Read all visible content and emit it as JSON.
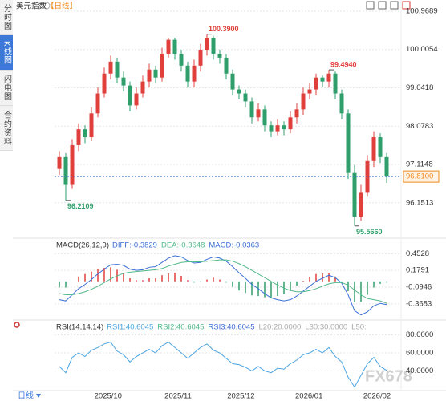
{
  "header": {
    "title": "美元指数",
    "period": "【日线】"
  },
  "sidebar": [
    "分时图",
    "K线图",
    "闪电图",
    "合约资料"
  ],
  "footer": {
    "period": "日线"
  },
  "watermark": "FX678",
  "chart_data": [
    {
      "type": "candlestick",
      "open": [
        97.0,
        97.3,
        96.6,
        97.6,
        98.0,
        97.8,
        98.4,
        98.9,
        99.4,
        99.7,
        99.3,
        99.1,
        98.6,
        98.9,
        99.2,
        99.5,
        99.3,
        99.9,
        100.25,
        99.9,
        99.6,
        99.2,
        99.6,
        100.0,
        100.3,
        99.9,
        99.8,
        99.4,
        99.0,
        98.9,
        98.7,
        98.3,
        98.5,
        98.1,
        97.95,
        98.1,
        98.0,
        98.3,
        98.5,
        98.9,
        99.0,
        99.3,
        99.2,
        99.4,
        98.9,
        98.4,
        96.9,
        95.8,
        96.4,
        97.2,
        97.8,
        97.3
      ],
      "high": [
        97.45,
        97.4,
        97.75,
        98.15,
        98.1,
        98.55,
        99.05,
        99.55,
        99.85,
        99.8,
        99.45,
        99.2,
        99.05,
        99.35,
        99.65,
        99.6,
        100.05,
        100.3,
        100.3,
        100.0,
        99.7,
        99.75,
        100.15,
        100.39,
        100.35,
        100.0,
        99.9,
        99.5,
        99.1,
        99.0,
        98.8,
        98.65,
        98.6,
        98.2,
        98.25,
        98.2,
        98.45,
        98.65,
        99.05,
        99.15,
        99.4,
        99.35,
        99.494,
        99.45,
        99.0,
        98.5,
        97.1,
        96.6,
        97.35,
        97.95,
        97.9,
        97.4
      ],
      "low": [
        96.85,
        96.2109,
        96.5,
        97.45,
        97.65,
        97.7,
        98.3,
        98.8,
        99.25,
        99.15,
        98.95,
        98.45,
        98.5,
        98.8,
        99.05,
        99.15,
        99.2,
        99.8,
        99.75,
        99.45,
        99.05,
        99.05,
        99.45,
        99.85,
        99.75,
        99.65,
        99.25,
        98.85,
        98.75,
        98.55,
        98.15,
        98.2,
        97.95,
        97.8,
        97.85,
        97.85,
        97.9,
        98.15,
        98.35,
        98.75,
        98.85,
        99.05,
        99.05,
        98.75,
        98.25,
        96.75,
        95.566,
        95.7,
        96.3,
        97.05,
        97.15,
        96.65
      ],
      "close": [
        97.3,
        96.6,
        97.6,
        98.0,
        97.8,
        98.4,
        98.9,
        99.4,
        99.7,
        99.3,
        99.1,
        98.6,
        98.9,
        99.2,
        99.5,
        99.3,
        99.9,
        100.25,
        99.9,
        99.6,
        99.2,
        99.6,
        100.0,
        100.3,
        99.9,
        99.8,
        99.4,
        99.0,
        98.9,
        98.7,
        98.3,
        98.5,
        98.1,
        97.95,
        98.1,
        98.0,
        98.3,
        98.5,
        98.9,
        99.0,
        99.3,
        99.2,
        99.4,
        98.9,
        98.4,
        96.9,
        95.8,
        96.4,
        97.2,
        97.8,
        97.3,
        96.81
      ],
      "up_color": "#e0403c",
      "down_color": "#2e9f6b",
      "ylim": [
        95.4,
        101.15
      ],
      "yticks": [
        100.9689,
        100.0054,
        99.0418,
        98.0783,
        97.1148,
        96.1513
      ],
      "annotations": [
        {
          "value": 100.39,
          "label": "100.3900"
        },
        {
          "value": 99.494,
          "label": "99.4940"
        },
        {
          "value": 96.2109,
          "label": "96.2109"
        },
        {
          "value": 95.566,
          "label": "95.5660"
        }
      ],
      "last": {
        "value": 96.81,
        "label": "96.8100",
        "color": "#f08a1c"
      },
      "grid": true
    },
    {
      "type": "macd",
      "title": "MACD(26,12,9)",
      "series": [
        {
          "name": "DIFF:-0.3829",
          "color": "#3b6fd6",
          "values": [
            -0.3,
            -0.32,
            -0.22,
            -0.12,
            -0.05,
            0.03,
            0.12,
            0.2,
            0.27,
            0.28,
            0.26,
            0.2,
            0.18,
            0.19,
            0.23,
            0.24,
            0.31,
            0.38,
            0.42,
            0.4,
            0.34,
            0.3,
            0.31,
            0.36,
            0.4,
            0.38,
            0.33,
            0.24,
            0.14,
            0.05,
            -0.05,
            -0.12,
            -0.2,
            -0.27,
            -0.3,
            -0.32,
            -0.3,
            -0.24,
            -0.16,
            -0.08,
            0.0,
            0.05,
            0.1,
            0.06,
            -0.03,
            -0.22,
            -0.48,
            -0.55,
            -0.5,
            -0.4,
            -0.36,
            -0.38
          ]
        },
        {
          "name": "DEA:-0.3648",
          "color": "#52b98a",
          "values": [
            -0.2,
            -0.22,
            -0.22,
            -0.2,
            -0.17,
            -0.13,
            -0.08,
            -0.02,
            0.04,
            0.09,
            0.13,
            0.15,
            0.16,
            0.17,
            0.18,
            0.19,
            0.21,
            0.25,
            0.28,
            0.31,
            0.32,
            0.32,
            0.32,
            0.33,
            0.34,
            0.35,
            0.35,
            0.33,
            0.29,
            0.24,
            0.18,
            0.12,
            0.06,
            0.0,
            -0.06,
            -0.11,
            -0.15,
            -0.17,
            -0.17,
            -0.15,
            -0.12,
            -0.08,
            -0.04,
            -0.02,
            -0.02,
            -0.06,
            -0.14,
            -0.22,
            -0.28,
            -0.3,
            -0.32,
            -0.36
          ]
        }
      ],
      "bars": {
        "name": "MACD:-0.0363",
        "color": "#3b6fd6",
        "up_color": "#e0403c",
        "down_color": "#2e9f6b",
        "values": [
          -0.1,
          -0.1,
          0.0,
          0.08,
          0.12,
          0.16,
          0.2,
          0.22,
          0.23,
          0.19,
          0.13,
          0.05,
          0.02,
          0.02,
          0.05,
          0.05,
          0.1,
          0.13,
          0.14,
          0.09,
          0.02,
          -0.02,
          -0.01,
          0.03,
          0.06,
          0.03,
          -0.02,
          -0.09,
          -0.15,
          -0.19,
          -0.23,
          -0.24,
          -0.26,
          -0.27,
          -0.24,
          -0.21,
          -0.15,
          -0.07,
          0.01,
          0.07,
          0.12,
          0.13,
          0.14,
          0.08,
          -0.01,
          -0.16,
          -0.34,
          -0.33,
          -0.22,
          -0.1,
          -0.04,
          -0.02
        ]
      },
      "ylim": [
        -0.62,
        0.51
      ],
      "yticks": [
        0.4528,
        0.1791,
        -0.0946,
        -0.3683
      ],
      "grid": true
    },
    {
      "type": "rsi",
      "title": "RSI(14,14,14)",
      "series": [
        {
          "name": "RSI1:40.6045",
          "color": "#4aa3df",
          "values": [
            45,
            38,
            55,
            60,
            56,
            63,
            66,
            70,
            72,
            62,
            58,
            50,
            56,
            60,
            64,
            60,
            68,
            72,
            66,
            60,
            54,
            60,
            66,
            70,
            63,
            60,
            54,
            48,
            47,
            44,
            40,
            45,
            40,
            38,
            43,
            42,
            48,
            52,
            58,
            60,
            64,
            60,
            66,
            56,
            50,
            33,
            22,
            35,
            48,
            55,
            45,
            40.6045
          ]
        }
      ],
      "legend_extra": [
        {
          "name": "RSI2:40.6045",
          "color": "#52b98a"
        },
        {
          "name": "RSI3:40.6045",
          "color": "#3b6fd6"
        },
        {
          "name": "L20:20.0000",
          "color": "#aaaaaa"
        },
        {
          "name": "L30:30.0000",
          "color": "#aaaaaa"
        },
        {
          "name": "L50:",
          "color": "#aaaaaa"
        }
      ],
      "ylim": [
        19,
        85
      ],
      "yticks": [
        {
          "value": 80,
          "label": "80.0000"
        },
        {
          "value": 60,
          "label": "60.0000"
        },
        {
          "value": 40,
          "label": "40.0000"
        }
      ],
      "xticks": [
        {
          "value": 7.6,
          "label": "2025/10"
        },
        {
          "value": 18.5,
          "label": "2025/11"
        },
        {
          "value": 28.3,
          "label": "2025/12"
        },
        {
          "value": 38.9,
          "label": "2026/01"
        },
        {
          "value": 49.5,
          "label": "2026/02"
        }
      ],
      "grid": true
    }
  ]
}
